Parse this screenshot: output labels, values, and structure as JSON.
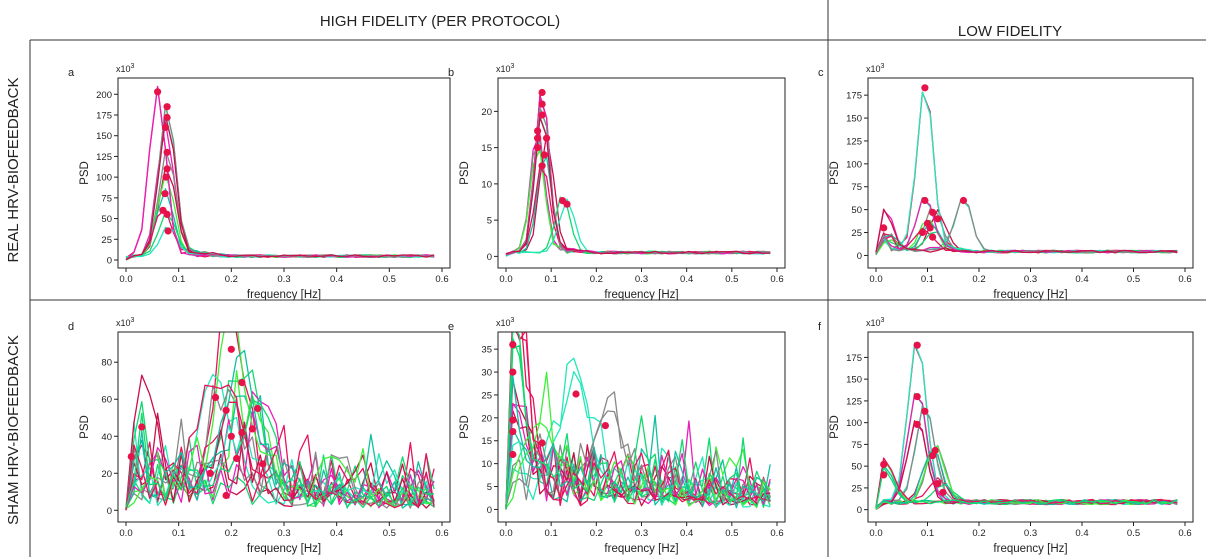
{
  "figure": {
    "col_headers": [
      "HIGH FIDELITY (PER PROTOCOL)",
      "LOW FIDELITY"
    ],
    "row_labels": [
      "REAL HRV-BIOFEEDBACK",
      "SHAM HRV-BIOFEEDBACK"
    ],
    "colors": {
      "series": [
        "#e8125c",
        "#12d96e",
        "#22e8b8",
        "#e820b8",
        "#888888",
        "#c8104a",
        "#3ef03a",
        "#10c0a0"
      ],
      "marker": "#e8124a",
      "frame": "#333333"
    }
  },
  "chart_data": [
    {
      "panel_label": "a",
      "type": "line",
      "exponent_label": "x10",
      "exponent": "3",
      "xlabel": "frequency [Hz]",
      "ylabel": "PSD",
      "xlim": [
        0,
        0.6
      ],
      "ylim": [
        0,
        210
      ],
      "xticks": [
        "0.0",
        "0.1",
        "0.2",
        "0.3",
        "0.4",
        "0.5",
        "0.6"
      ],
      "yticks": [
        "0",
        "25",
        "50",
        "75",
        "100",
        "125",
        "150",
        "175",
        "200"
      ],
      "peaks": [
        {
          "x": 0.06,
          "y": 203
        },
        {
          "x": 0.078,
          "y": 185
        },
        {
          "x": 0.078,
          "y": 172
        },
        {
          "x": 0.075,
          "y": 160
        },
        {
          "x": 0.078,
          "y": 130
        },
        {
          "x": 0.078,
          "y": 110
        },
        {
          "x": 0.076,
          "y": 100
        },
        {
          "x": 0.074,
          "y": 80
        },
        {
          "x": 0.07,
          "y": 60
        },
        {
          "x": 0.078,
          "y": 55
        },
        {
          "x": 0.08,
          "y": 35
        }
      ],
      "grid": false
    },
    {
      "panel_label": "b",
      "type": "line",
      "exponent_label": "x10",
      "exponent": "3",
      "xlabel": "frequency [Hz]",
      "ylabel": "PSD",
      "xlim": [
        0,
        0.6
      ],
      "ylim": [
        -0.5,
        23.5
      ],
      "xticks": [
        "0.0",
        "0.1",
        "0.2",
        "0.3",
        "0.4",
        "0.5",
        "0.6"
      ],
      "yticks": [
        "0",
        "5",
        "10",
        "15",
        "20"
      ],
      "peaks": [
        {
          "x": 0.08,
          "y": 22.6
        },
        {
          "x": 0.08,
          "y": 21
        },
        {
          "x": 0.08,
          "y": 19.5
        },
        {
          "x": 0.07,
          "y": 17.3
        },
        {
          "x": 0.07,
          "y": 16.3
        },
        {
          "x": 0.09,
          "y": 16.3
        },
        {
          "x": 0.07,
          "y": 15
        },
        {
          "x": 0.085,
          "y": 14
        },
        {
          "x": 0.08,
          "y": 12.5
        },
        {
          "x": 0.125,
          "y": 7.7
        },
        {
          "x": 0.135,
          "y": 7.2
        }
      ],
      "grid": false
    },
    {
      "panel_label": "c",
      "type": "line",
      "exponent_label": "x10",
      "exponent": "3",
      "xlabel": "frequency [Hz]",
      "ylabel": "PSD",
      "xlim": [
        0,
        0.6
      ],
      "ylim": [
        -5,
        185
      ],
      "xticks": [
        "0.0",
        "0.1",
        "0.2",
        "0.3",
        "0.4",
        "0.5",
        "0.6"
      ],
      "yticks": [
        "0",
        "25",
        "50",
        "75",
        "100",
        "125",
        "150",
        "175"
      ],
      "peaks": [
        {
          "x": 0.095,
          "y": 183
        },
        {
          "x": 0.095,
          "y": 60
        },
        {
          "x": 0.17,
          "y": 60
        },
        {
          "x": 0.015,
          "y": 30
        },
        {
          "x": 0.11,
          "y": 47
        },
        {
          "x": 0.12,
          "y": 40
        },
        {
          "x": 0.1,
          "y": 35
        },
        {
          "x": 0.105,
          "y": 30
        },
        {
          "x": 0.09,
          "y": 25
        },
        {
          "x": 0.11,
          "y": 20
        }
      ],
      "grid": false
    },
    {
      "panel_label": "d",
      "type": "line",
      "exponent_label": "x10",
      "exponent": "3",
      "xlabel": "frequency [Hz]",
      "ylabel": "PSD",
      "xlim": [
        0,
        0.6
      ],
      "ylim": [
        -2,
        92
      ],
      "xticks": [
        "0.0",
        "0.1",
        "0.2",
        "0.3",
        "0.4",
        "0.5",
        "0.6"
      ],
      "yticks": [
        "0",
        "20",
        "40",
        "60",
        "80"
      ],
      "peaks": [
        {
          "x": 0.2,
          "y": 87
        },
        {
          "x": 0.22,
          "y": 69
        },
        {
          "x": 0.17,
          "y": 61
        },
        {
          "x": 0.25,
          "y": 55
        },
        {
          "x": 0.19,
          "y": 54
        },
        {
          "x": 0.03,
          "y": 45
        },
        {
          "x": 0.24,
          "y": 44
        },
        {
          "x": 0.22,
          "y": 42
        },
        {
          "x": 0.2,
          "y": 40
        },
        {
          "x": 0.01,
          "y": 29
        },
        {
          "x": 0.21,
          "y": 28
        },
        {
          "x": 0.26,
          "y": 25
        },
        {
          "x": 0.16,
          "y": 20
        },
        {
          "x": 0.19,
          "y": 8
        }
      ],
      "grid": false
    },
    {
      "panel_label": "e",
      "type": "line",
      "exponent_label": "x10",
      "exponent": "3",
      "xlabel": "frequency [Hz]",
      "ylabel": "PSD",
      "xlim": [
        0,
        0.6
      ],
      "ylim": [
        -1,
        37
      ],
      "xticks": [
        "0.0",
        "0.1",
        "0.2",
        "0.3",
        "0.4",
        "0.5",
        "0.6"
      ],
      "yticks": [
        "0",
        "5",
        "10",
        "15",
        "20",
        "25",
        "30",
        "35"
      ],
      "peaks": [
        {
          "x": 0.015,
          "y": 36
        },
        {
          "x": 0.015,
          "y": 30
        },
        {
          "x": 0.155,
          "y": 25.2
        },
        {
          "x": 0.015,
          "y": 19.5
        },
        {
          "x": 0.22,
          "y": 18.3
        },
        {
          "x": 0.015,
          "y": 17
        },
        {
          "x": 0.08,
          "y": 14.5
        },
        {
          "x": 0.015,
          "y": 12
        }
      ],
      "grid": false
    },
    {
      "panel_label": "f",
      "type": "line",
      "exponent_label": "x10",
      "exponent": "3",
      "xlabel": "frequency [Hz]",
      "ylabel": "PSD",
      "xlim": [
        0,
        0.6
      ],
      "ylim": [
        -5,
        195
      ],
      "xticks": [
        "0.0",
        "0.1",
        "0.2",
        "0.3",
        "0.4",
        "0.5",
        "0.6"
      ],
      "yticks": [
        "0",
        "25",
        "50",
        "75",
        "100",
        "125",
        "150",
        "175"
      ],
      "peaks": [
        {
          "x": 0.08,
          "y": 189
        },
        {
          "x": 0.08,
          "y": 130
        },
        {
          "x": 0.095,
          "y": 113
        },
        {
          "x": 0.08,
          "y": 98
        },
        {
          "x": 0.115,
          "y": 68
        },
        {
          "x": 0.11,
          "y": 62
        },
        {
          "x": 0.015,
          "y": 52
        },
        {
          "x": 0.015,
          "y": 40
        },
        {
          "x": 0.12,
          "y": 30
        },
        {
          "x": 0.13,
          "y": 20
        }
      ],
      "grid": false
    }
  ]
}
